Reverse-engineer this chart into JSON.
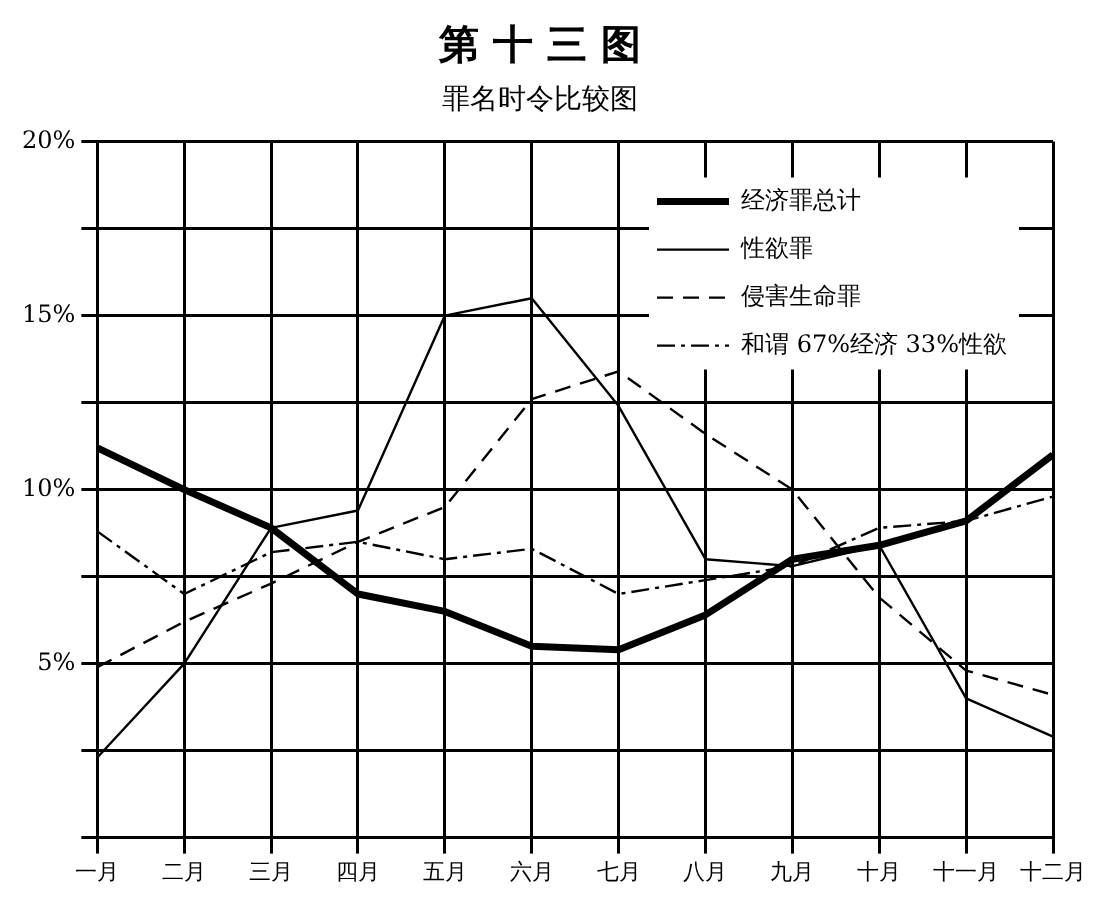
{
  "chart_data": {
    "type": "line",
    "title": "第 十 三 图",
    "subtitle": "罪名时令比较图",
    "categories": [
      "一月",
      "二月",
      "三月",
      "四月",
      "五月",
      "六月",
      "七月",
      "八月",
      "九月",
      "十月",
      "十一月",
      "十二月"
    ],
    "series": [
      {
        "name": "经济罪总计",
        "color": "#000000",
        "line_style": "solid",
        "values": [
          11.2,
          10.0,
          8.9,
          7.0,
          6.5,
          5.5,
          5.4,
          6.4,
          8.0,
          8.4,
          9.1,
          11.0
        ]
      },
      {
        "name": "性欲罪",
        "color": "#000000",
        "line_style": "solid",
        "values": [
          2.3,
          5.0,
          8.9,
          9.4,
          15.0,
          15.5,
          12.4,
          8.0,
          7.8,
          8.4,
          4.0,
          2.9
        ]
      },
      {
        "name": "侵害生命罪",
        "color": "#000000",
        "line_style": "dashed",
        "values": [
          4.9,
          6.2,
          7.3,
          8.5,
          9.5,
          12.6,
          13.4,
          11.6,
          10.0,
          6.9,
          4.8,
          4.1
        ]
      },
      {
        "name": "和谓 67%经济 33%性欲",
        "color": "#000000",
        "line_style": "dotted",
        "values": [
          8.8,
          7.0,
          8.2,
          8.5,
          8.0,
          8.3,
          7.0,
          7.4,
          7.8,
          8.9,
          9.1,
          9.8
        ]
      }
    ],
    "ylim": [
      0,
      20
    ],
    "yticks": [
      {
        "value": 0,
        "label": null
      },
      {
        "value": 2.5,
        "label": null
      },
      {
        "value": 5,
        "label": "5%"
      },
      {
        "value": 7.5,
        "label": null
      },
      {
        "value": 10,
        "label": "10%"
      },
      {
        "value": 12.5,
        "label": null
      },
      {
        "value": 15,
        "label": "15%"
      },
      {
        "value": 17.5,
        "label": null
      },
      {
        "value": 20,
        "label": "20%"
      }
    ],
    "grid": true,
    "legend": "top right",
    "marker": "none"
  }
}
